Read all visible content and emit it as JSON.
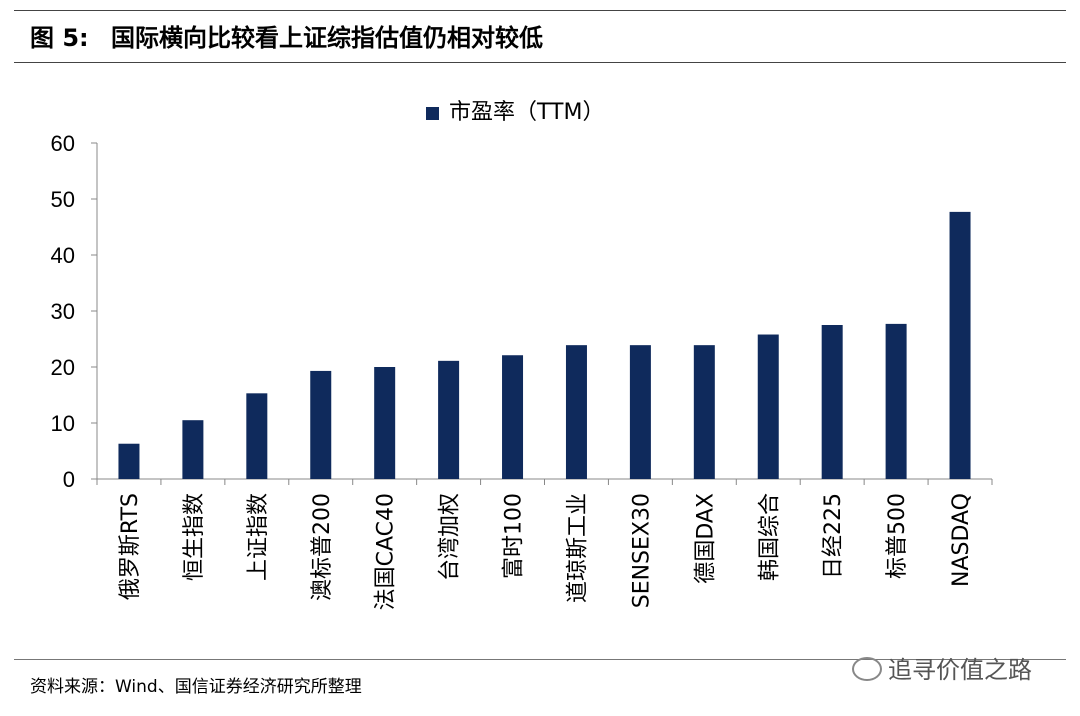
{
  "figure": {
    "label": "图",
    "number": "5:",
    "title": "国际横向比较看上证综指估值仍相对较低"
  },
  "source_note": "资料来源：Wind、国信证券经济研究所整理",
  "watermark": "追寻价值之路",
  "colors": {
    "bar": "#0f2a5c",
    "axis": "#888888"
  },
  "chart_data": {
    "type": "bar",
    "title": "",
    "xlabel": "",
    "ylabel": "",
    "ylim": [
      0,
      60
    ],
    "yticks": [
      0,
      10,
      20,
      30,
      40,
      50,
      60
    ],
    "grid": false,
    "legend_position": "top-center",
    "categories": [
      "俄罗斯RTS",
      "恒生指数",
      "上证指数",
      "澳标普200",
      "法国CAC40",
      "台湾加权",
      "富时100",
      "道琼斯工业",
      "SENSEX30",
      "德国DAX",
      "韩国综合",
      "日经225",
      "标普500",
      "NASDAQ"
    ],
    "series": [
      {
        "name": "市盈率（TTM）",
        "values": [
          6.3,
          10.5,
          15.3,
          19.3,
          20.0,
          21.1,
          22.1,
          23.9,
          23.9,
          23.9,
          25.8,
          27.5,
          27.7,
          47.7
        ]
      }
    ]
  }
}
